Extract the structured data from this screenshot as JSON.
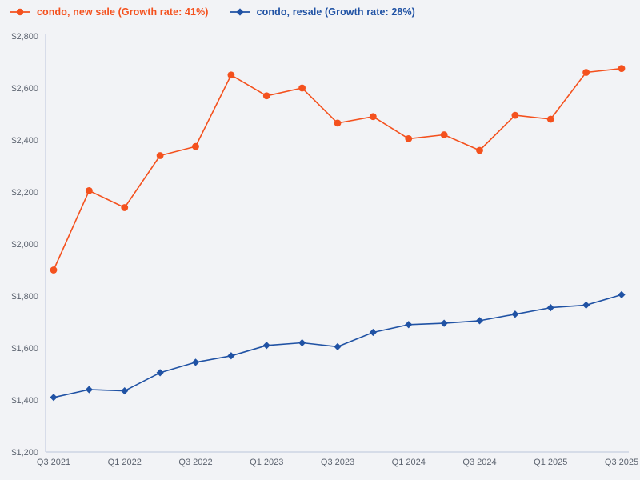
{
  "page": {
    "background": "#f2f3f6"
  },
  "legend": [
    {
      "label": "condo, new sale (Growth rate: 41%)",
      "color": "#f4511e",
      "marker": "circle-icon"
    },
    {
      "label": "condo, resale (Growth rate: 28%)",
      "color": "#2052a4",
      "marker": "diamond-icon"
    }
  ],
  "chart_data": {
    "type": "line",
    "x": [
      "Q3 2021",
      "Q4 2021",
      "Q1 2022",
      "Q2 2022",
      "Q3 2022",
      "Q4 2022",
      "Q1 2023",
      "Q2 2023",
      "Q3 2023",
      "Q4 2023",
      "Q1 2024",
      "Q2 2024",
      "Q3 2024",
      "Q4 2024",
      "Q1 2025",
      "Q2 2025",
      "Q3 2025"
    ],
    "x_tick_indices": [
      0,
      2,
      4,
      6,
      8,
      10,
      12,
      14,
      16
    ],
    "series": [
      {
        "name": "condo, new sale (Growth rate: 41%)",
        "growth_rate": "41%",
        "color": "#f4511e",
        "marker": "circle",
        "values": [
          1900,
          2205,
          2140,
          2340,
          2375,
          2650,
          2570,
          2600,
          2465,
          2490,
          2405,
          2420,
          2360,
          2495,
          2480,
          2660,
          2675
        ]
      },
      {
        "name": "condo, resale (Growth rate: 28%)",
        "growth_rate": "28%",
        "color": "#2052a4",
        "marker": "diamond",
        "values": [
          1410,
          1440,
          1435,
          1505,
          1545,
          1570,
          1610,
          1620,
          1605,
          1660,
          1690,
          1695,
          1705,
          1730,
          1755,
          1765,
          1805
        ]
      }
    ],
    "ylim": [
      1200,
      2800
    ],
    "y_ticks": [
      1200,
      1400,
      1600,
      1800,
      2000,
      2200,
      2400,
      2600,
      2800
    ],
    "y_tick_labels": [
      "$1,200",
      "$1,400",
      "$1,600",
      "$1,800",
      "$2,000",
      "$2,200",
      "$2,400",
      "$2,600",
      "$2,800"
    ],
    "grid": false,
    "legend_position": "top-left",
    "axis_color": "#c6cee0",
    "tick_label_color": "#5d6470"
  }
}
